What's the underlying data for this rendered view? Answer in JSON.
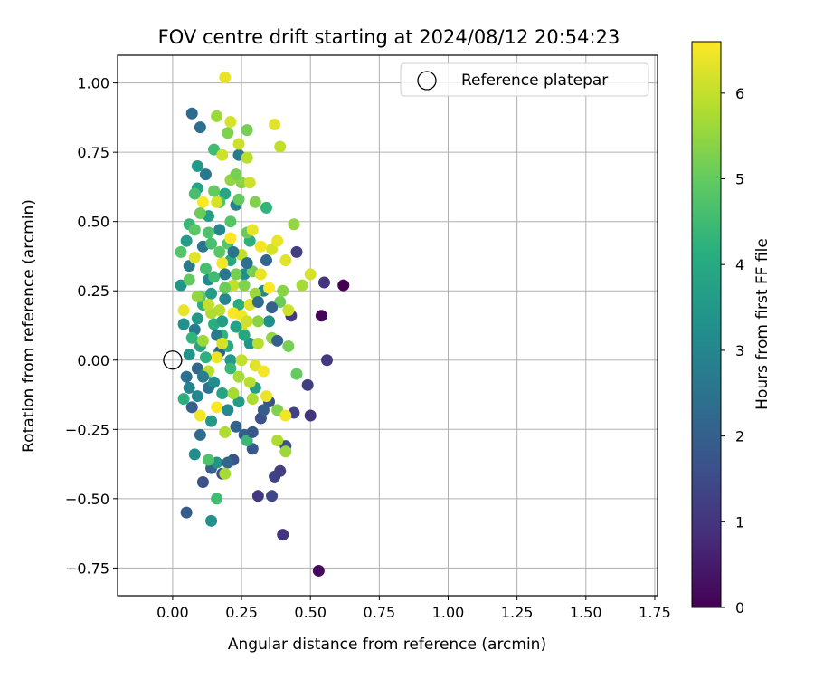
{
  "chart_data": {
    "type": "scatter",
    "title": "FOV centre drift starting at 2024/08/12 20:54:23",
    "xlabel": "Angular distance from reference (arcmin)",
    "ylabel": "Rotation from reference (arcmin)",
    "xlim": [
      -0.2,
      1.76
    ],
    "ylim": [
      -0.85,
      1.1
    ],
    "xticks": [
      "0.00",
      "0.25",
      "0.50",
      "0.75",
      "1.00",
      "1.25",
      "1.50",
      "1.75"
    ],
    "yticks": [
      "-0.75",
      "-0.50",
      "-0.25",
      "0.00",
      "0.25",
      "0.50",
      "0.75",
      "1.00"
    ],
    "grid": true,
    "legend": {
      "placement": "top-right",
      "entries": [
        "Reference platepar"
      ]
    },
    "colorbar": {
      "label": "Hours from first FF file",
      "range": [
        0,
        6.6
      ],
      "ticks": [
        "0",
        "1",
        "2",
        "3",
        "4",
        "5",
        "6"
      ],
      "colormap": "viridis"
    },
    "reference_point": {
      "x": 0.0,
      "y": 0.0,
      "label": "Reference platepar"
    },
    "points": [
      [
        0.62,
        0.27,
        0.0
      ],
      [
        0.54,
        0.16,
        0.1
      ],
      [
        0.53,
        -0.76,
        0.2
      ],
      [
        0.56,
        0.0,
        1.1
      ],
      [
        0.55,
        0.28,
        1.0
      ],
      [
        0.5,
        -0.2,
        1.0
      ],
      [
        0.49,
        -0.09,
        1.2
      ],
      [
        0.44,
        -0.19,
        1.3
      ],
      [
        0.43,
        0.16,
        1.1
      ],
      [
        0.4,
        -0.63,
        1.0
      ],
      [
        0.39,
        -0.4,
        1.2
      ],
      [
        0.37,
        -0.42,
        1.3
      ],
      [
        0.36,
        -0.49,
        1.4
      ],
      [
        0.31,
        -0.49,
        1.1
      ],
      [
        0.45,
        0.39,
        1.2
      ],
      [
        0.41,
        -0.31,
        1.6
      ],
      [
        0.35,
        -0.15,
        1.7
      ],
      [
        0.32,
        -0.21,
        1.6
      ],
      [
        0.29,
        -0.32,
        1.8
      ],
      [
        0.22,
        -0.36,
        1.7
      ],
      [
        0.18,
        -0.41,
        1.5
      ],
      [
        0.11,
        -0.44,
        1.6
      ],
      [
        0.05,
        -0.55,
        1.9
      ],
      [
        0.14,
        -0.39,
        2.0
      ],
      [
        0.2,
        -0.37,
        2.2
      ],
      [
        0.26,
        -0.27,
        2.0
      ],
      [
        0.23,
        -0.24,
        2.1
      ],
      [
        0.1,
        -0.27,
        2.3
      ],
      [
        0.07,
        -0.17,
        2.0
      ],
      [
        0.09,
        -0.03,
        2.2
      ],
      [
        0.05,
        -0.06,
        2.4
      ],
      [
        0.13,
        -0.1,
        2.5
      ],
      [
        0.17,
        0.03,
        2.1
      ],
      [
        0.08,
        0.11,
        2.6
      ],
      [
        0.06,
        0.34,
        2.7
      ],
      [
        0.11,
        0.41,
        2.5
      ],
      [
        0.07,
        0.89,
        2.3
      ],
      [
        0.1,
        0.84,
        2.4
      ],
      [
        0.12,
        0.67,
        2.6
      ],
      [
        0.24,
        0.74,
        2.7
      ],
      [
        0.23,
        0.56,
        2.9
      ],
      [
        0.17,
        0.47,
        3.0
      ],
      [
        0.13,
        0.29,
        3.1
      ],
      [
        0.19,
        0.22,
        3.0
      ],
      [
        0.26,
        0.31,
        3.2
      ],
      [
        0.33,
        0.25,
        3.1
      ],
      [
        0.35,
        0.14,
        3.3
      ],
      [
        0.28,
        0.06,
        3.4
      ],
      [
        0.21,
        0.0,
        3.5
      ],
      [
        0.12,
        -0.05,
        3.6
      ],
      [
        0.08,
        -0.34,
        3.2
      ],
      [
        0.14,
        -0.58,
        3.3
      ],
      [
        0.16,
        -0.37,
        3.4
      ],
      [
        0.14,
        -0.22,
        3.5
      ],
      [
        0.24,
        -0.15,
        3.6
      ],
      [
        0.3,
        -0.1,
        3.7
      ],
      [
        0.18,
        -0.12,
        3.8
      ],
      [
        0.1,
        0.05,
        3.9
      ],
      [
        0.04,
        0.13,
        3.3
      ],
      [
        0.03,
        0.27,
        3.4
      ],
      [
        0.05,
        0.43,
        3.6
      ],
      [
        0.09,
        0.62,
        3.8
      ],
      [
        0.09,
        0.7,
        3.5
      ],
      [
        0.13,
        0.52,
        3.7
      ],
      [
        0.19,
        0.6,
        3.9
      ],
      [
        0.21,
        0.36,
        4.0
      ],
      [
        0.15,
        0.13,
        4.1
      ],
      [
        0.11,
        0.2,
        4.2
      ],
      [
        0.18,
        0.09,
        4.3
      ],
      [
        0.24,
        0.2,
        4.1
      ],
      [
        0.28,
        0.43,
        4.2
      ],
      [
        0.34,
        0.55,
        4.3
      ],
      [
        0.16,
        -0.5,
        4.5
      ],
      [
        0.27,
        -0.29,
        4.4
      ],
      [
        0.21,
        -0.03,
        4.4
      ],
      [
        0.06,
        0.49,
        4.4
      ],
      [
        0.08,
        0.6,
        4.6
      ],
      [
        0.15,
        0.76,
        4.5
      ],
      [
        0.13,
        -0.36,
        4.7
      ],
      [
        0.04,
        -0.14,
        4.2
      ],
      [
        0.03,
        0.39,
        4.8
      ],
      [
        0.17,
        0.57,
        4.7
      ],
      [
        0.2,
        0.42,
        4.8
      ],
      [
        0.14,
        0.42,
        4.6
      ],
      [
        0.1,
        0.23,
        4.9
      ],
      [
        0.06,
        0.29,
        5.0
      ],
      [
        0.24,
        0.58,
        5.0
      ],
      [
        0.27,
        0.46,
        5.1
      ],
      [
        0.29,
        0.32,
        5.2
      ],
      [
        0.39,
        0.21,
        5.1
      ],
      [
        0.42,
        0.05,
        5.2
      ],
      [
        0.45,
        -0.05,
        5.0
      ],
      [
        0.38,
        -0.18,
        5.3
      ],
      [
        0.4,
        0.25,
        5.4
      ],
      [
        0.3,
        0.57,
        5.3
      ],
      [
        0.25,
        0.64,
        5.4
      ],
      [
        0.21,
        0.65,
        5.5
      ],
      [
        0.27,
        0.83,
        5.2
      ],
      [
        0.2,
        0.82,
        5.3
      ],
      [
        0.16,
        0.88,
        5.6
      ],
      [
        0.44,
        0.49,
        5.5
      ],
      [
        0.47,
        0.27,
        5.7
      ],
      [
        0.41,
        -0.33,
        5.6
      ],
      [
        0.38,
        -0.29,
        5.8
      ],
      [
        0.19,
        -0.41,
        5.7
      ],
      [
        0.19,
        -0.26,
        5.8
      ],
      [
        0.13,
        -0.04,
        5.9
      ],
      [
        0.17,
        0.18,
        5.9
      ],
      [
        0.22,
        0.27,
        6.0
      ],
      [
        0.25,
        0.38,
        6.0
      ],
      [
        0.27,
        0.73,
        5.9
      ],
      [
        0.18,
        0.74,
        6.1
      ],
      [
        0.24,
        0.78,
        6.1
      ],
      [
        0.21,
        0.86,
        6.2
      ],
      [
        0.39,
        0.77,
        6.0
      ],
      [
        0.37,
        0.85,
        6.3
      ],
      [
        0.19,
        1.02,
        6.4
      ],
      [
        0.28,
        0.64,
        6.1
      ],
      [
        0.36,
        0.4,
        6.2
      ],
      [
        0.41,
        0.36,
        6.3
      ],
      [
        0.32,
        0.31,
        6.4
      ],
      [
        0.25,
        0.11,
        6.2
      ],
      [
        0.3,
        -0.02,
        6.3
      ],
      [
        0.33,
        -0.04,
        6.5
      ],
      [
        0.34,
        -0.13,
        6.4
      ],
      [
        0.41,
        -0.2,
        6.5
      ],
      [
        0.16,
        -0.17,
        6.6
      ],
      [
        0.1,
        -0.2,
        6.5
      ],
      [
        0.16,
        0.01,
        6.4
      ],
      [
        0.22,
        0.17,
        6.6
      ],
      [
        0.25,
        0.16,
        6.5
      ],
      [
        0.28,
        0.2,
        6.3
      ],
      [
        0.35,
        0.26,
        6.6
      ],
      [
        0.32,
        0.41,
        6.5
      ],
      [
        0.29,
        0.47,
        6.4
      ],
      [
        0.21,
        0.44,
        6.6
      ],
      [
        0.18,
        0.35,
        6.5
      ],
      [
        0.11,
        0.57,
        6.6
      ],
      [
        0.16,
        0.57,
        6.2
      ],
      [
        0.08,
        0.37,
        6.3
      ],
      [
        0.04,
        0.18,
        6.4
      ],
      [
        0.5,
        0.31,
        6.2
      ],
      [
        0.38,
        0.43,
        6.4
      ],
      [
        0.42,
        0.18,
        6.1
      ],
      [
        0.25,
        0.0,
        6.0
      ],
      [
        0.28,
        -0.08,
        5.9
      ],
      [
        0.22,
        -0.12,
        5.7
      ],
      [
        0.14,
        0.17,
        5.8
      ],
      [
        0.11,
        0.07,
        5.6
      ],
      [
        0.09,
        0.23,
        5.5
      ],
      [
        0.31,
        0.14,
        5.4
      ],
      [
        0.36,
        0.08,
        5.5
      ],
      [
        0.3,
        0.24,
        5.6
      ],
      [
        0.26,
        0.27,
        5.3
      ],
      [
        0.23,
        0.31,
        5.2
      ],
      [
        0.19,
        0.26,
        5.1
      ],
      [
        0.17,
        0.39,
        4.9
      ],
      [
        0.21,
        0.5,
        4.8
      ],
      [
        0.13,
        0.46,
        4.7
      ],
      [
        0.12,
        0.33,
        4.6
      ],
      [
        0.15,
        0.3,
        4.5
      ],
      [
        0.07,
        0.08,
        4.3
      ],
      [
        0.12,
        0.01,
        4.2
      ],
      [
        0.2,
        0.05,
        4.0
      ],
      [
        0.26,
        0.09,
        3.9
      ],
      [
        0.23,
        0.12,
        3.8
      ],
      [
        0.18,
        0.14,
        3.7
      ],
      [
        0.14,
        0.24,
        3.6
      ],
      [
        0.09,
        0.15,
        3.5
      ],
      [
        0.06,
        0.02,
        3.4
      ],
      [
        0.15,
        -0.08,
        3.2
      ],
      [
        0.2,
        -0.18,
        3.1
      ],
      [
        0.09,
        -0.13,
        3.0
      ],
      [
        0.06,
        -0.1,
        2.9
      ],
      [
        0.11,
        -0.06,
        2.8
      ],
      [
        0.16,
        0.09,
        2.7
      ],
      [
        0.19,
        0.31,
        2.6
      ],
      [
        0.22,
        0.39,
        2.5
      ],
      [
        0.27,
        0.35,
        2.4
      ],
      [
        0.31,
        0.21,
        2.3
      ],
      [
        0.34,
        0.36,
        2.2
      ],
      [
        0.36,
        0.19,
        2.1
      ],
      [
        0.38,
        0.07,
        2.0
      ],
      [
        0.33,
        -0.18,
        1.9
      ],
      [
        0.29,
        -0.26,
        1.8
      ],
      [
        0.08,
        0.47,
        4.9
      ],
      [
        0.1,
        0.53,
        5.1
      ],
      [
        0.15,
        0.61,
        5.0
      ],
      [
        0.23,
        0.67,
        5.2
      ],
      [
        0.13,
        0.2,
        6.0
      ],
      [
        0.18,
        0.06,
        6.2
      ],
      [
        0.27,
        0.14,
        6.1
      ],
      [
        0.31,
        0.06,
        5.9
      ],
      [
        0.29,
        -0.14,
        5.8
      ],
      [
        0.24,
        -0.06,
        5.7
      ]
    ]
  }
}
